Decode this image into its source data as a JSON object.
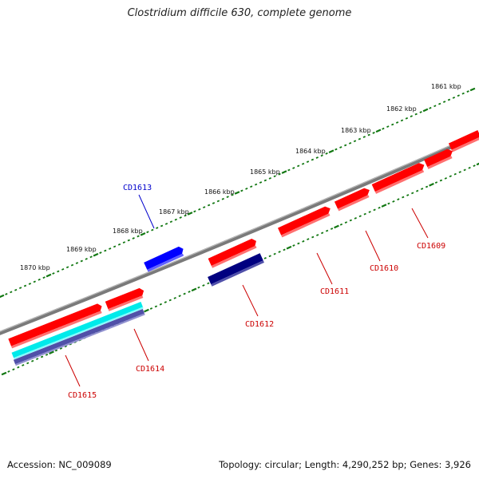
{
  "title": "Clostridium difficile 630, complete genome",
  "footer": {
    "accession": "Accession: NC_009089",
    "summary": "Topology: circular; Length: 4,290,252 bp; Genes: 3,926"
  },
  "colors": {
    "background": "#ffffff",
    "backbone": "#808080",
    "tick": "#117711",
    "forward_gene": "#ff0000",
    "reverse_gene_label": "#cc0000",
    "label_highlight": "#0000cc"
  },
  "kbp_labels": [
    "1861 kbp",
    "1862 kbp",
    "1863 kbp",
    "1864 kbp",
    "1865 kbp",
    "1866 kbp",
    "1867 kbp",
    "1868 kbp",
    "1869 kbp",
    "1870 kbp"
  ],
  "genes": [
    {
      "name": "CD1609",
      "color": "#ff0000",
      "label_color": "#cc0000"
    },
    {
      "name": "CD1610",
      "color": "#ff0000",
      "label_color": "#cc0000"
    },
    {
      "name": "CD1611",
      "color": "#ff0000",
      "label_color": "#cc0000"
    },
    {
      "name": "CD1612",
      "color": "#000080",
      "label_color": "#cc0000"
    },
    {
      "name": "CD1613",
      "color": "#0000ff",
      "label_color": "#0000cc"
    },
    {
      "name": "CD1614",
      "color": "#00e5e5",
      "label_color": "#cc0000"
    },
    {
      "name": "CD1615",
      "color": "#5555aa",
      "label_color": "#cc0000"
    }
  ]
}
